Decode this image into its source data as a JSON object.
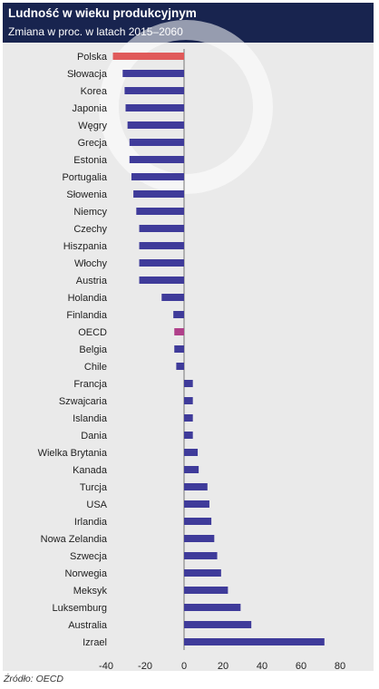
{
  "title": "Ludność w wieku produkcyjnym",
  "subtitle": "Zmiana w proc. w latach 2015–2060",
  "source": "Źródło: OECD",
  "colors": {
    "header_bg": "#18244f",
    "bar_default": "#3f3b9a",
    "bar_highlight_polska": "#e05a5a",
    "bar_highlight_oecd": "#b0408a",
    "plot_bg": "#eaeaea"
  },
  "chart_data": {
    "type": "bar",
    "orientation": "horizontal",
    "categories": [
      "Polska",
      "Słowacja",
      "Korea",
      "Japonia",
      "Węgry",
      "Grecja",
      "Estonia",
      "Portugalia",
      "Słowenia",
      "Niemcy",
      "Czechy",
      "Hiszpania",
      "Włochy",
      "Austria",
      "Holandia",
      "Finlandia",
      "OECD",
      "Belgia",
      "Chile",
      "Francja",
      "Szwajcaria",
      "Islandia",
      "Dania",
      "Wielka Brytania",
      "Kanada",
      "Turcja",
      "USA",
      "Irlandia",
      "Nowa Zelandia",
      "Szwecja",
      "Norwegia",
      "Meksyk",
      "Luksemburg",
      "Australia",
      "Izrael"
    ],
    "values": [
      -36.5,
      -31.5,
      -30.5,
      -30,
      -29,
      -28,
      -28,
      -27,
      -26,
      -24.5,
      -23,
      -23,
      -23,
      -23,
      -11.5,
      -5.5,
      -5,
      -5,
      -4,
      4.5,
      4.5,
      4.5,
      4.5,
      7,
      7.5,
      12,
      13,
      14,
      15.5,
      17,
      19,
      22.5,
      29,
      34.5,
      72
    ],
    "highlight": {
      "Polska": "#e05a5a",
      "OECD": "#b0408a"
    },
    "xlim": [
      -40,
      80
    ],
    "xticks": [
      "-40",
      "-20",
      "0",
      "20",
      "40",
      "60",
      "80"
    ],
    "grid": false
  }
}
